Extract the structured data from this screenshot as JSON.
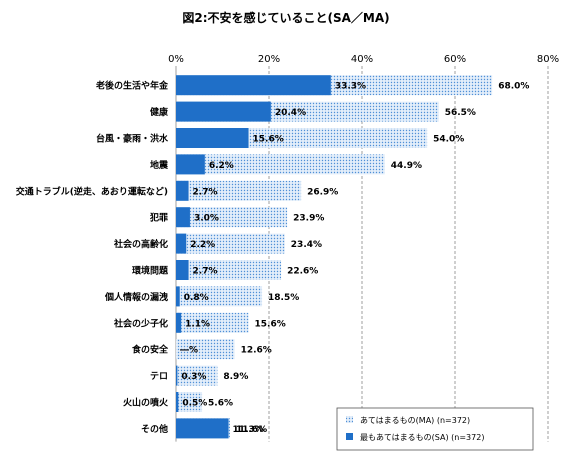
{
  "chart_data": {
    "type": "bar",
    "orientation": "horizontal",
    "title": "図2:不安を感じていること(SA／MA)",
    "xlim": [
      0,
      80
    ],
    "x_ticks": [
      "0%",
      "20%",
      "40%",
      "60%",
      "80%"
    ],
    "grid": true,
    "legend_position": "bottom-right",
    "categories": [
      "老後の生活や年金",
      "健康",
      "台風・豪雨・洪水",
      "地震",
      "交通トラブル(逆走、あおり運転など)",
      "犯罪",
      "社会の高齢化",
      "環境問題",
      "個人情報の漏洩",
      "社会の少子化",
      "食の安全",
      "テロ",
      "火山の噴火",
      "その他"
    ],
    "series": [
      {
        "name": "あてはまるもの(MA) (n=372)",
        "values": [
          68.0,
          56.5,
          54.0,
          44.9,
          26.9,
          23.9,
          23.4,
          22.6,
          18.5,
          15.6,
          12.6,
          8.9,
          5.6,
          11.6
        ],
        "labels": [
          "68.0%",
          "56.5%",
          "54.0%",
          "44.9%",
          "26.9%",
          "23.9%",
          "23.4%",
          "22.6%",
          "18.5%",
          "15.6%",
          "12.6%",
          "8.9%",
          "5.6%",
          "11.6%"
        ],
        "color": "#bfd8f2"
      },
      {
        "name": "最もあてはまるもの(SA) (n=372)",
        "values": [
          33.3,
          20.4,
          15.6,
          6.2,
          2.7,
          3.0,
          2.2,
          2.7,
          0.8,
          1.1,
          0,
          0.3,
          0.5,
          11.3
        ],
        "labels": [
          "33.3%",
          "20.4%",
          "15.6%",
          "6.2%",
          "2.7%",
          "3.0%",
          "2.2%",
          "2.7%",
          "0.8%",
          "1.1%",
          "―%",
          "0.3%",
          "0.5%",
          "11.3%"
        ],
        "color": "#1f6fc8"
      }
    ]
  }
}
